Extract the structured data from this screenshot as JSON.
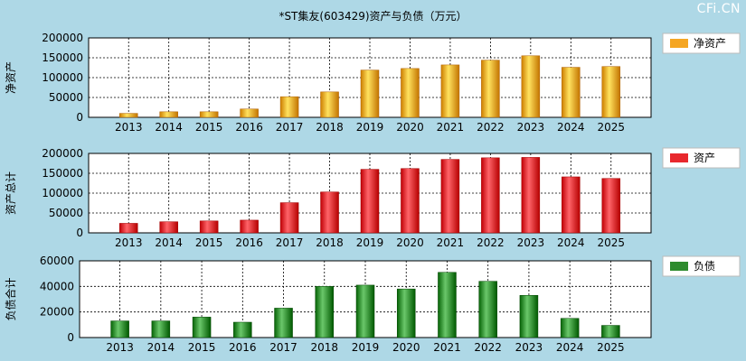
{
  "title": "*ST集友(603429)资产与负债（万元）",
  "watermark": "CFi.CN",
  "colors": {
    "background": "#aed8e6",
    "plot_background": "#ffffff",
    "net_assets": "#f5a623",
    "total_assets": "#e8282d",
    "total_liabilities": "#2e8b2e"
  },
  "chart_data": [
    {
      "type": "bar",
      "ylabel": "净资产",
      "legend": "净资产",
      "legend_position": "right",
      "grid": true,
      "categories": [
        "2013",
        "2014",
        "2015",
        "2016",
        "2017",
        "2018",
        "2019",
        "2020",
        "2021",
        "2022",
        "2023",
        "2024",
        "2025"
      ],
      "values": [
        10000,
        14000,
        14000,
        21000,
        52000,
        64000,
        119000,
        123000,
        132000,
        144000,
        155000,
        126000,
        128000
      ],
      "ylim": [
        0,
        200000
      ],
      "yticks": [
        "0",
        "50000",
        "100000",
        "150000",
        "200000"
      ]
    },
    {
      "type": "bar",
      "ylabel": "资产总计",
      "legend": "资产",
      "legend_position": "right",
      "grid": true,
      "categories": [
        "2013",
        "2014",
        "2015",
        "2016",
        "2017",
        "2018",
        "2019",
        "2020",
        "2021",
        "2022",
        "2023",
        "2024",
        "2025"
      ],
      "values": [
        24000,
        28000,
        30000,
        32000,
        76000,
        103000,
        160000,
        162000,
        185000,
        189000,
        190000,
        141000,
        137000
      ],
      "ylim": [
        0,
        200000
      ],
      "yticks": [
        "0",
        "50000",
        "100000",
        "150000",
        "200000"
      ]
    },
    {
      "type": "bar",
      "ylabel": "负债合计",
      "legend": "负债",
      "legend_position": "right",
      "grid": true,
      "categories": [
        "2013",
        "2014",
        "2015",
        "2016",
        "2017",
        "2018",
        "2019",
        "2020",
        "2021",
        "2022",
        "2023",
        "2024",
        "2025"
      ],
      "values": [
        13000,
        13000,
        16000,
        12000,
        23000,
        40000,
        41000,
        38000,
        51000,
        44000,
        33000,
        15000,
        9500
      ],
      "ylim": [
        0,
        60000
      ],
      "yticks": [
        "0",
        "20000",
        "40000",
        "60000"
      ]
    }
  ]
}
